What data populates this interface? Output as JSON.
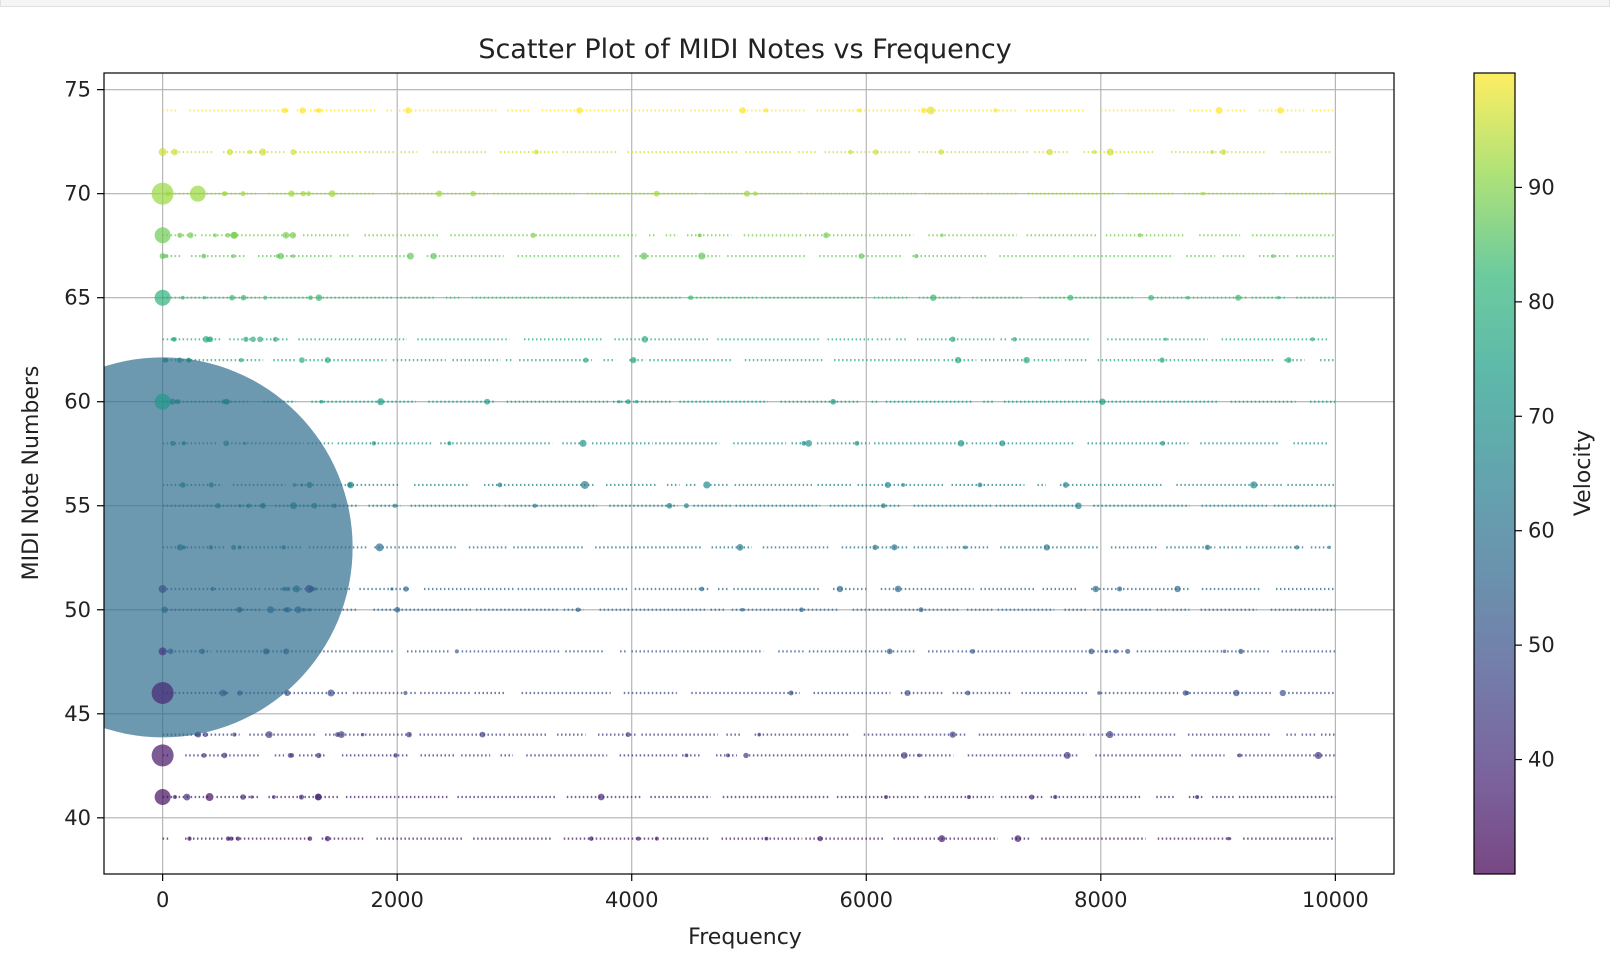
{
  "chart_data": {
    "type": "scatter",
    "title": "Scatter Plot of MIDI Notes vs Frequency",
    "xlabel": "Frequency",
    "ylabel": "MIDI Note Numbers",
    "xlim": [
      -500,
      10500
    ],
    "ylim": [
      37.3,
      75.8
    ],
    "xticks": [
      0,
      2000,
      4000,
      6000,
      8000,
      10000
    ],
    "yticks": [
      40,
      45,
      50,
      55,
      60,
      65,
      70,
      75
    ],
    "grid": true,
    "colormap": "viridis",
    "alpha": 0.7,
    "colorbar": {
      "label": "Velocity",
      "range": [
        30,
        100
      ],
      "ticks": [
        40,
        50,
        60,
        70,
        80,
        90
      ]
    },
    "note_rows": [
      39,
      41,
      43,
      44,
      46,
      48,
      50,
      51,
      53,
      55,
      56,
      58,
      60,
      62,
      63,
      65,
      67,
      68,
      70,
      72,
      74
    ],
    "row_frequency_range": [
      0,
      10000
    ],
    "points": [
      {
        "x": 0,
        "y": 53,
        "velocity": 58,
        "size": "huge"
      },
      {
        "x": 0,
        "y": 46,
        "velocity": 38,
        "size": "large"
      },
      {
        "x": 0,
        "y": 43,
        "velocity": 35,
        "size": "large"
      },
      {
        "x": 0,
        "y": 41,
        "velocity": 33,
        "size": "medium"
      },
      {
        "x": 0,
        "y": 70,
        "velocity": 92,
        "size": "large"
      },
      {
        "x": 300,
        "y": 70,
        "velocity": 92,
        "size": "medium"
      },
      {
        "x": 0,
        "y": 68,
        "velocity": 88,
        "size": "medium"
      },
      {
        "x": 0,
        "y": 65,
        "velocity": 80,
        "size": "medium"
      },
      {
        "x": 0,
        "y": 72,
        "velocity": 96,
        "size": "small"
      },
      {
        "x": 0,
        "y": 60,
        "velocity": 72,
        "size": "medium"
      },
      {
        "x": 0,
        "y": 48,
        "velocity": 42,
        "size": "small"
      },
      {
        "x": 0,
        "y": 51,
        "velocity": 50,
        "size": "small"
      },
      {
        "x": 400,
        "y": 41,
        "velocity": 33,
        "size": "small"
      },
      {
        "x": 1250,
        "y": 51,
        "velocity": 50,
        "size": "small"
      },
      {
        "x": 1850,
        "y": 53,
        "velocity": 58,
        "size": "small"
      },
      {
        "x": 3600,
        "y": 56,
        "velocity": 63,
        "size": "small"
      },
      {
        "x": 6550,
        "y": 74,
        "velocity": 98,
        "size": "small"
      }
    ]
  }
}
